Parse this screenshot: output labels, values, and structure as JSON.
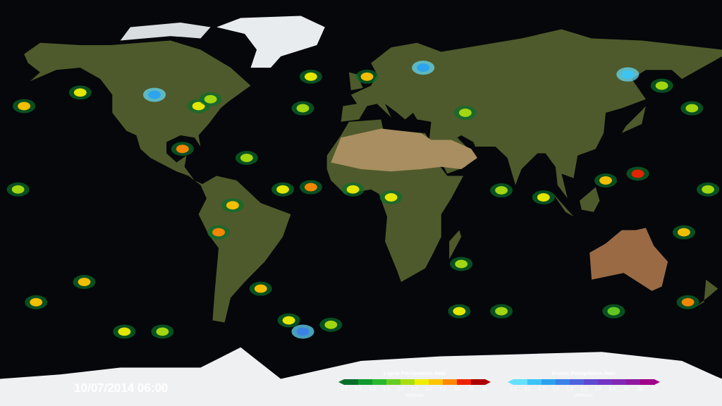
{
  "chart_data": {
    "type": "scatter",
    "timestamp": "10/07/2014 06:00",
    "xlim": [
      -180,
      180
    ],
    "ylim": [
      -90,
      90
    ],
    "tick_labels": false,
    "color_bars": [
      {
        "title": "Liquid Precipitation Rate",
        "unit": "mm/hour",
        "ticks": [
          0.1,
          0.2,
          0.3,
          0.5,
          1.0,
          2.0,
          3.0,
          5.0,
          10,
          20,
          50
        ],
        "colors": [
          "#0a6e2b",
          "#109a2f",
          "#28b82c",
          "#66cc22",
          "#aadd11",
          "#eeee00",
          "#ffc400",
          "#ff8800",
          "#ee2200",
          "#aa0000"
        ],
        "lon": [
          -168,
          -140,
          -171,
          -89,
          -81,
          -75,
          -57,
          -71,
          -64,
          -25,
          -39,
          -4,
          15,
          3,
          -25,
          -29,
          52,
          138,
          122,
          91,
          70,
          150,
          165,
          161,
          163,
          -138,
          -162,
          -118,
          -99,
          -50,
          -36,
          -15,
          49,
          70,
          50,
          126,
          173
        ],
        "lat": [
          43,
          49,
          6,
          24,
          43,
          46,
          20,
          -13,
          -1,
          7,
          6,
          6,
          2.5,
          56,
          56,
          42,
          40,
          13,
          10,
          2.5,
          5.6,
          52,
          42,
          -13,
          -44,
          -35,
          -44,
          -57,
          -57,
          -38,
          -52,
          -54,
          -48,
          -48,
          -27,
          -48,
          6
        ],
        "rate": [
          3,
          2,
          1,
          5,
          2,
          1,
          1,
          5,
          3,
          5,
          2,
          2,
          2,
          3,
          2,
          1,
          1,
          10,
          3,
          2,
          1,
          1,
          1,
          3,
          5,
          3,
          3,
          2,
          1,
          3,
          2,
          1,
          2,
          1,
          1,
          0.5,
          1
        ]
      },
      {
        "title": "Frozen Precipitation Rate",
        "unit": "mm/hour",
        "ticks": [
          0.1,
          0.2,
          0.3,
          0.5,
          1.0,
          2.0,
          3.0,
          5.0,
          10,
          20,
          50
        ],
        "colors": [
          "#66e0ff",
          "#3cc4f5",
          "#2aa2ef",
          "#3a82e8",
          "#4d64dd",
          "#5e4ad0",
          "#7035c4",
          "#8228b4",
          "#9018a0",
          "#a0008a"
        ],
        "lon": [
          -29,
          31,
          133,
          -103
        ],
        "lat": [
          -57,
          60,
          57,
          48
        ],
        "rate": [
          0.5,
          0.3,
          0.2,
          0.3
        ]
      }
    ]
  }
}
